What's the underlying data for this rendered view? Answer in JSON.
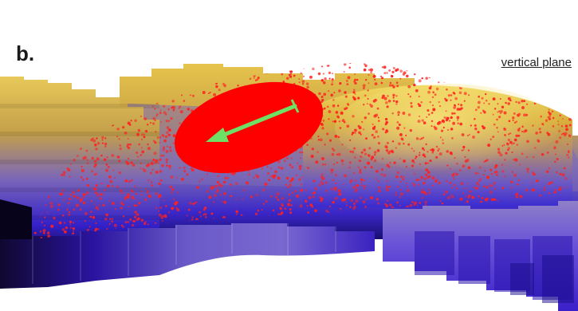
{
  "figure": {
    "panel_label": "b.",
    "plane_label": "vertical plane"
  },
  "colors": {
    "surface_top": "#d9b23a",
    "surface_mid": "#8a6fb0",
    "surface_deep": "#2a1ab8",
    "surface_dark": "#10082e",
    "points": "#ff2020",
    "highlight": "#ff0000",
    "vector": "#66e060"
  },
  "icons": {
    "vector": "green-arrow-icon"
  }
}
